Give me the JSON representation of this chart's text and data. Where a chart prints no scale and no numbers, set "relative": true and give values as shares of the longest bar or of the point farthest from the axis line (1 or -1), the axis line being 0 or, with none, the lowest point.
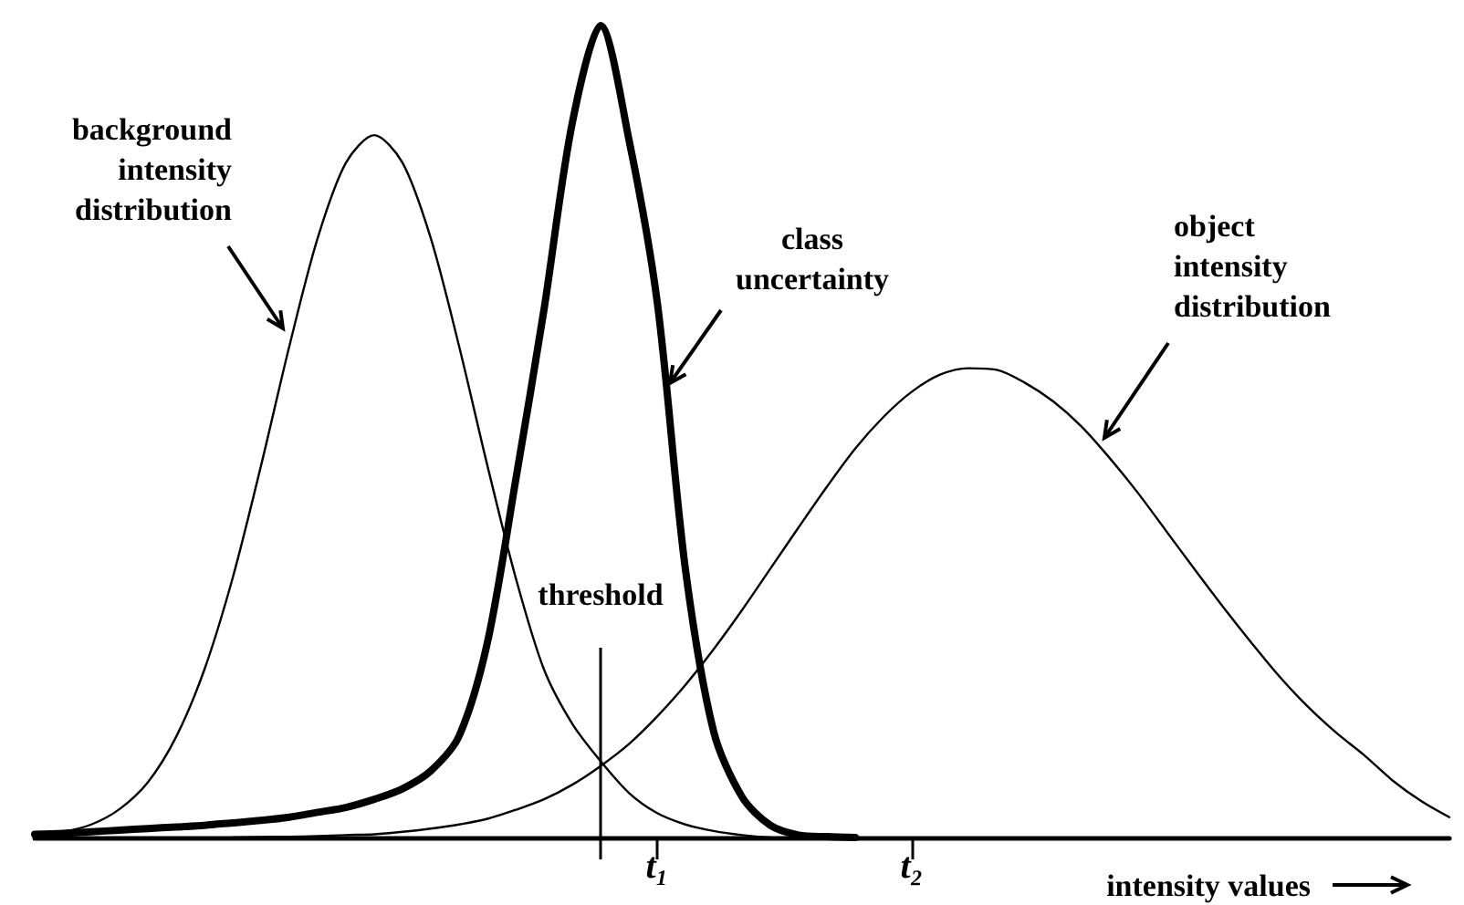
{
  "chart_data": {
    "type": "line",
    "relative": true,
    "xlabel": "intensity values",
    "categories": [
      null,
      null,
      null,
      null,
      null,
      null,
      null,
      null,
      null,
      null,
      null,
      null,
      null,
      null,
      null,
      null,
      null,
      null,
      null,
      null,
      null,
      null,
      "t₁",
      null,
      null,
      null,
      null,
      null,
      null,
      null,
      null,
      "t₂",
      null,
      null,
      null,
      null,
      null,
      null,
      null,
      null,
      null,
      null,
      null,
      null,
      null,
      null,
      null,
      null,
      null,
      null,
      null
    ],
    "series": [
      {
        "color": "#000000",
        "values": [
          0.003,
          0.007,
          0.016,
          0.035,
          0.068,
          0.124,
          0.207,
          0.32,
          0.458,
          0.605,
          0.738,
          0.831,
          0.865,
          0.831,
          0.738,
          0.605,
          0.458,
          0.32,
          0.207,
          0.14,
          0.094,
          0.055,
          0.03,
          0.016,
          0.008,
          0.003,
          0,
          null,
          null,
          null,
          null,
          null,
          null,
          null,
          null,
          null,
          null,
          null,
          null,
          null,
          null,
          null,
          null,
          null,
          null,
          null,
          null,
          null,
          null,
          null,
          null
        ]
      },
      {
        "color": "#000000",
        "values": [
          0.004,
          0.005,
          0.007,
          0.009,
          0.011,
          0.013,
          0.015,
          0.018,
          0.021,
          0.025,
          0.031,
          0.037,
          0.047,
          0.06,
          0.082,
          0.125,
          0.24,
          0.44,
          0.65,
          0.88,
          1,
          0.86,
          0.66,
          0.33,
          0.13,
          0.05,
          0.015,
          0.003,
          0.001,
          0,
          null,
          null,
          null,
          null,
          null,
          null,
          null,
          null,
          null,
          null,
          null,
          null,
          null,
          null,
          null,
          null,
          null,
          null,
          null,
          null,
          null
        ]
      },
      {
        "color": "#000000",
        "values": [
          null,
          null,
          null,
          null,
          null,
          null,
          null,
          0,
          0.0006,
          0.001,
          0.0017,
          0.003,
          0.004,
          0.007,
          0.011,
          0.016,
          0.023,
          0.034,
          0.047,
          0.065,
          0.088,
          0.115,
          0.149,
          0.188,
          0.232,
          0.28,
          0.331,
          0.382,
          0.432,
          0.479,
          0.518,
          0.549,
          0.57,
          0.578,
          0.576,
          0.56,
          0.537,
          0.506,
          0.467,
          0.424,
          0.377,
          0.33,
          0.284,
          0.24,
          0.198,
          0.161,
          0.129,
          0.101,
          0.07,
          0.045,
          0.025
        ]
      }
    ],
    "annotations": [
      "background\nintensity\ndistribution",
      "class\nuncertainty",
      "object\nintensity\ndistribution",
      "threshold"
    ],
    "grid": false,
    "marker": "none",
    "line_style": "solid"
  }
}
